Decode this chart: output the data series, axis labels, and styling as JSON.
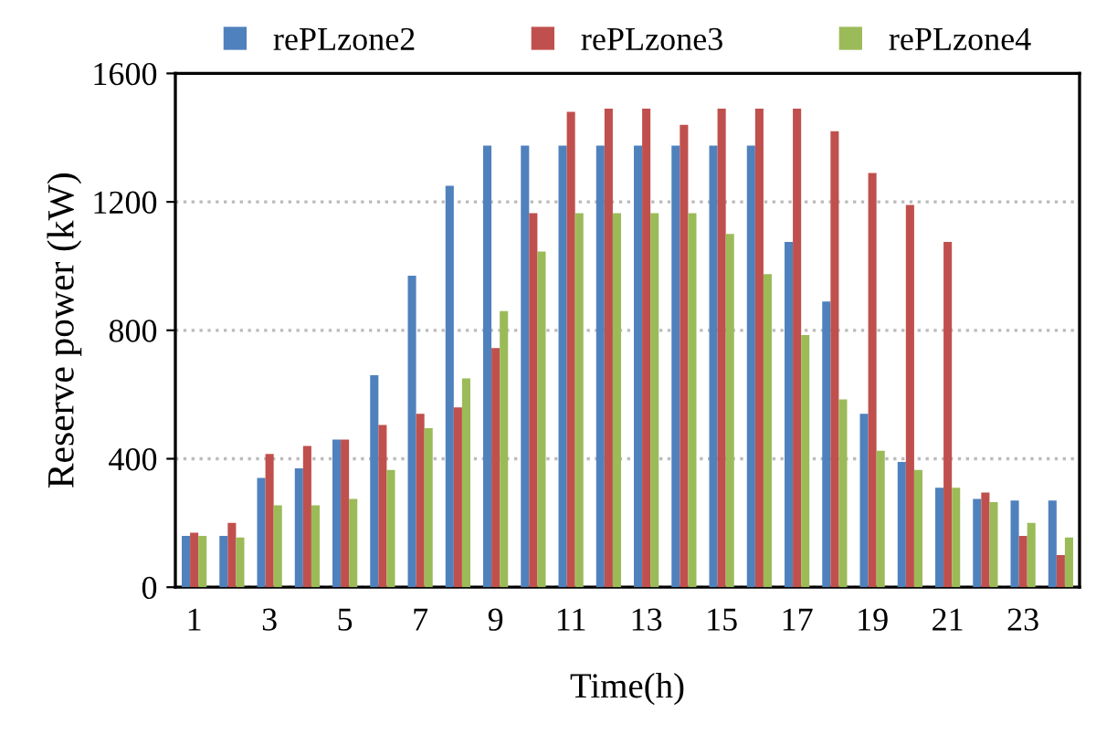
{
  "chart_data": {
    "type": "bar",
    "xlabel": "Time(h)",
    "ylabel": "Reserve power (kW)",
    "categories": [
      "1",
      null,
      "3",
      null,
      "5",
      null,
      "7",
      null,
      "9",
      null,
      "11",
      null,
      "13",
      null,
      "15",
      null,
      "17",
      null,
      "19",
      null,
      "21",
      null,
      "23",
      null
    ],
    "series": [
      {
        "name": "rePLzone2",
        "color": "#4f81bd",
        "values": [
          160,
          160,
          340,
          370,
          460,
          660,
          970,
          1250,
          1375,
          1375,
          1375,
          1375,
          1375,
          1375,
          1375,
          1375,
          1075,
          890,
          540,
          390,
          310,
          275,
          270,
          270
        ]
      },
      {
        "name": "rePLzone3",
        "color": "#c0504d",
        "values": [
          170,
          200,
          415,
          440,
          460,
          505,
          540,
          560,
          745,
          1165,
          1480,
          1490,
          1490,
          1440,
          1490,
          1490,
          1490,
          1420,
          1290,
          1190,
          1075,
          295,
          160,
          100
        ]
      },
      {
        "name": "rePLzone4",
        "color": "#9bbb59",
        "values": [
          160,
          155,
          255,
          255,
          275,
          365,
          495,
          650,
          860,
          1045,
          1165,
          1165,
          1165,
          1165,
          1100,
          975,
          785,
          585,
          425,
          365,
          310,
          265,
          200,
          155
        ]
      }
    ],
    "ylim": [
      0,
      1600
    ],
    "yticks": [
      0,
      400,
      800,
      1200,
      1600
    ],
    "grid": "y",
    "legend": "top"
  }
}
